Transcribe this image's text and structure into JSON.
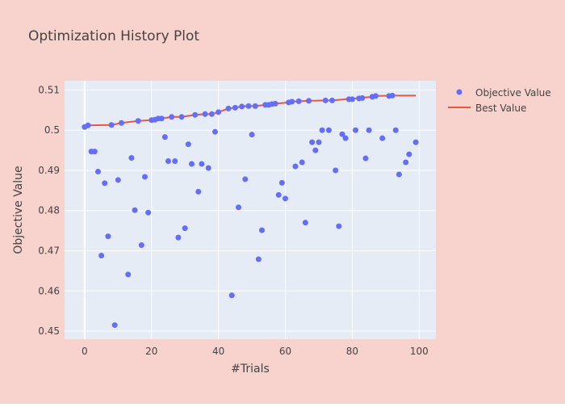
{
  "colors": {
    "paper": "#F8D2CC",
    "plot": "#E5ECF6",
    "grid": "#FFFFFF",
    "marker": "#636EFA",
    "line": "#EF553B",
    "text": "#444444"
  },
  "chart_data": {
    "type": "scatter",
    "title": "Optimization History Plot",
    "xlabel": "#Trials",
    "ylabel": "Objective Value",
    "xlim": [
      -6,
      105
    ],
    "ylim": [
      0.448,
      0.5123
    ],
    "xticks": [
      0,
      20,
      40,
      60,
      80,
      100
    ],
    "yticks": [
      0.45,
      0.46,
      0.47,
      0.48,
      0.49,
      0.5,
      0.51
    ],
    "xtick_labels": [
      "0",
      "20",
      "40",
      "60",
      "80",
      "100"
    ],
    "ytick_labels": [
      "0.45",
      "0.46",
      "0.47",
      "0.48",
      "0.49",
      "0.5",
      "0.51"
    ],
    "legend": {
      "position": "top-right",
      "entries": [
        "Objective Value",
        "Best Value"
      ]
    },
    "series": [
      {
        "name": "Objective Value",
        "mode": "markers",
        "x": [
          0,
          1,
          2,
          3,
          4,
          5,
          6,
          7,
          8,
          9,
          10,
          11,
          13,
          14,
          15,
          16,
          17,
          18,
          19,
          20,
          21,
          22,
          23,
          24,
          25,
          26,
          27,
          28,
          29,
          30,
          31,
          32,
          33,
          34,
          35,
          36,
          37,
          38,
          39,
          40,
          43,
          44,
          45,
          46,
          47,
          48,
          49,
          50,
          51,
          52,
          53,
          54,
          55,
          56,
          57,
          58,
          59,
          60,
          61,
          62,
          63,
          64,
          65,
          66,
          67,
          68,
          69,
          70,
          71,
          72,
          73,
          74,
          75,
          76,
          77,
          78,
          79,
          80,
          81,
          82,
          83,
          84,
          85,
          86,
          87,
          89,
          91,
          92,
          93,
          94,
          96,
          97,
          99
        ],
        "y": [
          0.5008,
          0.5012,
          0.4947,
          0.4947,
          0.4897,
          0.4688,
          0.4868,
          0.4736,
          0.5013,
          0.4515,
          0.4876,
          0.5018,
          0.4641,
          0.4931,
          0.4801,
          0.5023,
          0.4714,
          0.4884,
          0.4795,
          0.5025,
          0.5026,
          0.5029,
          0.5029,
          0.4983,
          0.4923,
          0.5033,
          0.4923,
          0.4733,
          0.5033,
          0.4756,
          0.4965,
          0.4916,
          0.5038,
          0.4847,
          0.4916,
          0.504,
          0.4906,
          0.504,
          0.4996,
          0.5045,
          0.5054,
          0.4589,
          0.5056,
          0.4808,
          0.5059,
          0.4878,
          0.506,
          0.4989,
          0.506,
          0.4679,
          0.4751,
          0.5063,
          0.5063,
          0.5065,
          0.5066,
          0.4839,
          0.4869,
          0.483,
          0.5069,
          0.5071,
          0.491,
          0.5072,
          0.492,
          0.477,
          0.5073,
          0.497,
          0.495,
          0.497,
          0.5,
          0.5074,
          0.5,
          0.5074,
          0.49,
          0.4761,
          0.499,
          0.498,
          0.5077,
          0.5077,
          0.5,
          0.5079,
          0.508,
          0.493,
          0.5,
          0.5083,
          0.5085,
          0.498,
          0.5085,
          0.5086,
          0.5,
          0.489,
          0.492,
          0.494,
          0.497
        ]
      },
      {
        "name": "Best Value",
        "mode": "lines",
        "x": [
          0,
          1,
          8,
          11,
          16,
          20,
          21,
          22,
          23,
          26,
          29,
          33,
          36,
          38,
          40,
          43,
          45,
          47,
          49,
          51,
          54,
          55,
          56,
          57,
          61,
          62,
          64,
          67,
          72,
          74,
          78,
          80,
          81,
          82,
          86,
          87,
          92,
          99
        ],
        "y": [
          0.5008,
          0.5012,
          0.5013,
          0.5018,
          0.5023,
          0.5025,
          0.5026,
          0.5029,
          0.5029,
          0.5033,
          0.5033,
          0.5038,
          0.504,
          0.504,
          0.5045,
          0.5054,
          0.5056,
          0.5059,
          0.506,
          0.506,
          0.5063,
          0.5063,
          0.5065,
          0.5066,
          0.5069,
          0.5071,
          0.5072,
          0.5073,
          0.5074,
          0.5074,
          0.5077,
          0.5077,
          0.5079,
          0.508,
          0.5083,
          0.5085,
          0.5086,
          0.5086
        ]
      }
    ]
  }
}
